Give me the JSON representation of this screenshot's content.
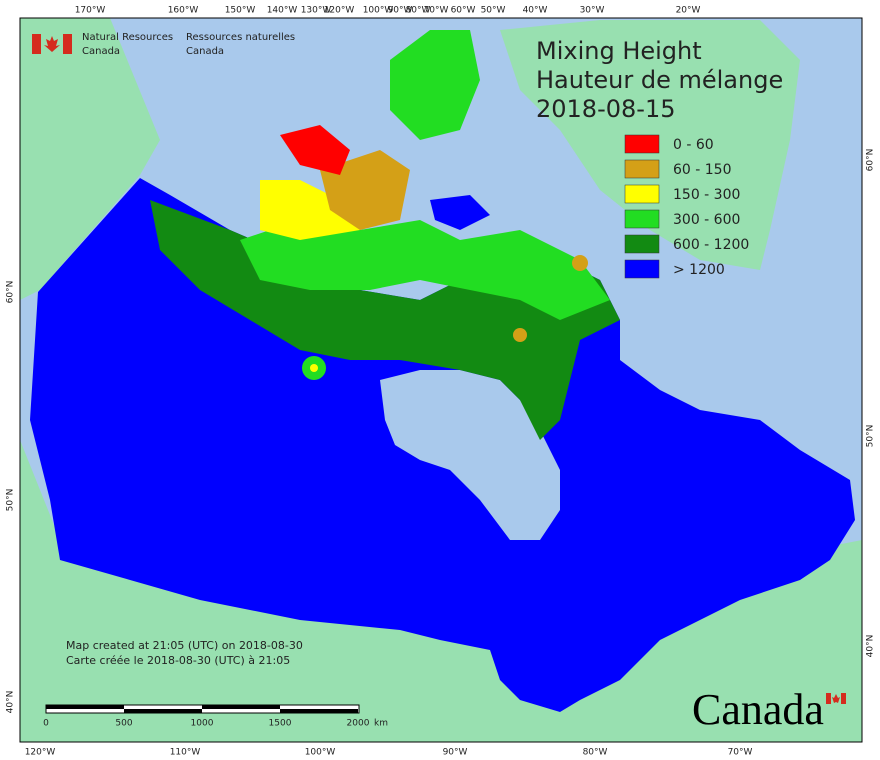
{
  "header": {
    "org_en": [
      "Natural Resources",
      "Canada"
    ],
    "org_fr": [
      "Ressources naturelles",
      "Canada"
    ]
  },
  "title": {
    "lines": [
      "Mixing Height",
      "Hauteur de mélange",
      "2018-08-15"
    ]
  },
  "legend": [
    {
      "label": "0 - 60",
      "color": "#ff0000"
    },
    {
      "label": "60 - 150",
      "color": "#d4a017"
    },
    {
      "label": "150 - 300",
      "color": "#ffff00"
    },
    {
      "label": "300 - 600",
      "color": "#22dd22"
    },
    {
      "label": "600 - 1200",
      "color": "#128a12"
    },
    {
      "label": "> 1200",
      "color": "#0000ff"
    }
  ],
  "notes": [
    "Map created at 21:05 (UTC) on 2018-08-30",
    "Carte créée le 2018-08-30 (UTC) à 21:05"
  ],
  "scale_bar": {
    "labels": [
      "0",
      "500",
      "1000",
      "1500",
      "2000"
    ],
    "unit": "km"
  },
  "wordmark": "Canada",
  "graticule": {
    "top": [
      "170°W",
      "160°W",
      "150°W",
      "140°W",
      "130°W",
      "120°W",
      "100°W",
      "90°W",
      "80°W",
      "70°W",
      "60°W",
      "50°W",
      "40°W",
      "30°W",
      "20°W"
    ],
    "bottom": [
      "120°W",
      "110°W",
      "100°W",
      "90°W",
      "80°W",
      "70°W"
    ],
    "left": [
      "60°N",
      "50°N",
      "40°N"
    ],
    "right": [
      "60°N",
      "50°N",
      "40°N"
    ]
  }
}
